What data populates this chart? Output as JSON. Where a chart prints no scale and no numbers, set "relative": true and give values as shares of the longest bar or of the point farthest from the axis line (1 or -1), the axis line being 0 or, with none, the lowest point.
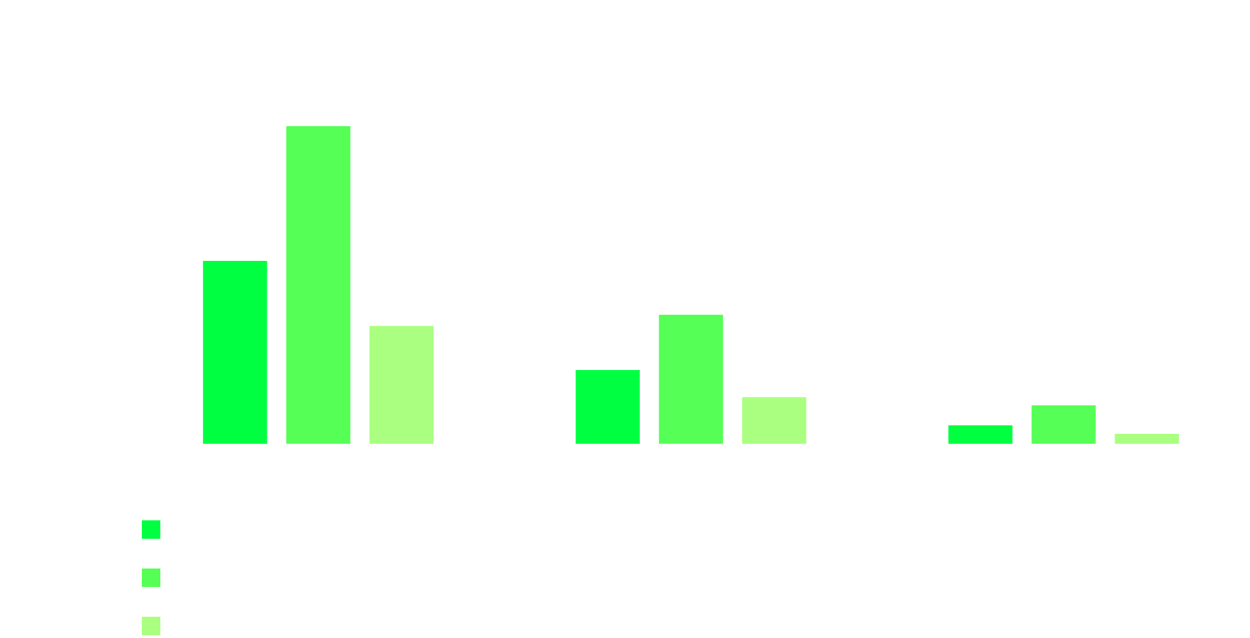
{
  "chart_data": {
    "type": "bar",
    "relative": true,
    "categories": [
      null,
      null,
      null
    ],
    "series": [
      {
        "color": "#00ff41",
        "values": [
          0.576,
          0.232,
          0.058
        ]
      },
      {
        "color": "#55ff55",
        "values": [
          1,
          0.406,
          0.121
        ]
      },
      {
        "color": "#aaff80",
        "values": [
          0.371,
          0.147,
          0.031
        ]
      }
    ]
  }
}
